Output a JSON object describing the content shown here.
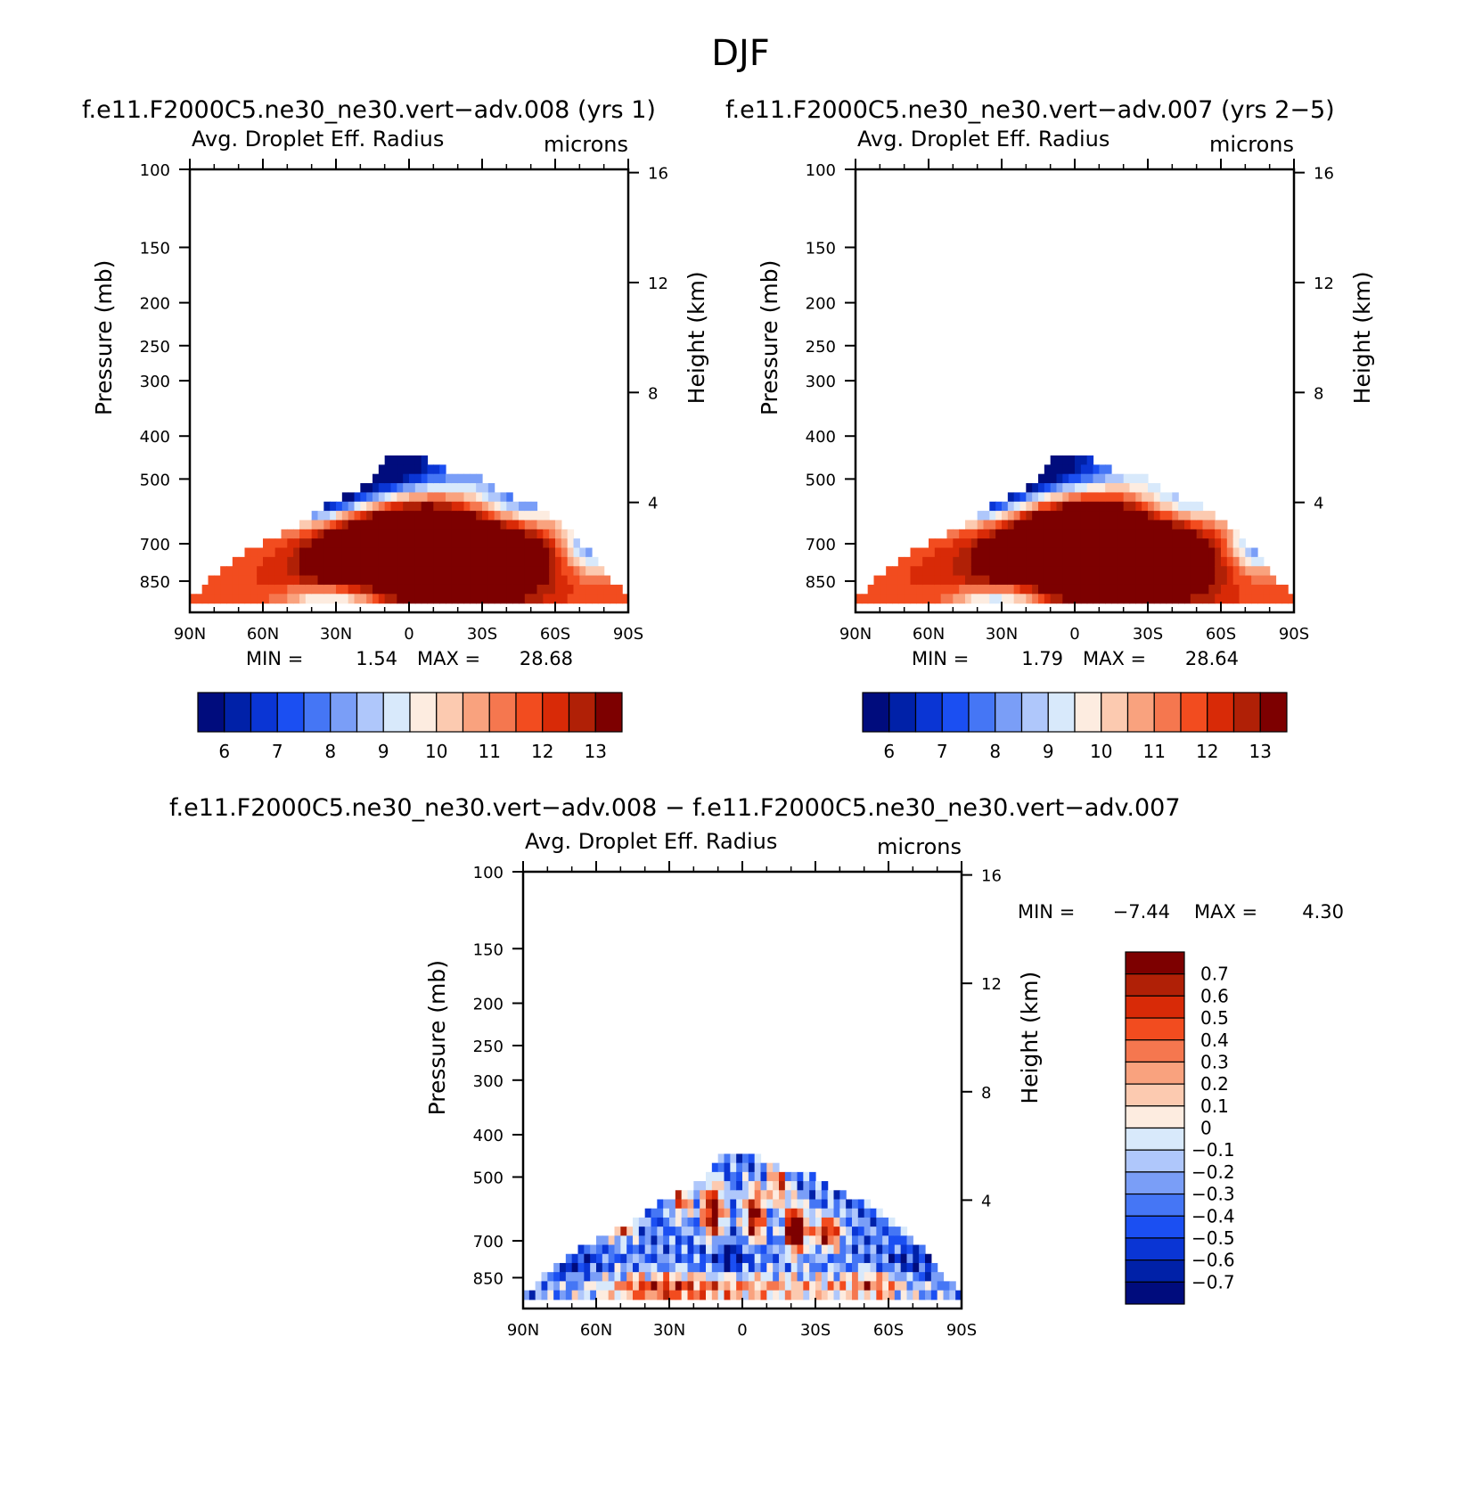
{
  "figure": {
    "title": "DJF",
    "panel_left_title": "f.e11.F2000C5.ne30_ne30.vert−adv.008 (yrs 1)",
    "panel_right_title": "f.e11.F2000C5.ne30_ne30.vert−adv.007 (yrs 2−5)",
    "panel_diff_title": "f.e11.F2000C5.ne30_ne30.vert−adv.008 − f.e11.F2000C5.ne30_ne30.vert−adv.007"
  },
  "chart_data": [
    {
      "type": "heatmap",
      "variable": "Avg. Droplet Eff. Radius",
      "units": "microns",
      "xlabel": "",
      "ylabel": "Pressure (mb)",
      "ylabel_right": "Height (km)",
      "x_ticks": [
        "90N",
        "60N",
        "30N",
        "0",
        "30S",
        "60S",
        "90S"
      ],
      "x_tick_values": [
        90,
        60,
        30,
        0,
        -30,
        -60,
        -90
      ],
      "xlim": [
        90,
        -90
      ],
      "y_ticks": [
        "100",
        "150",
        "200",
        "250",
        "300",
        "400",
        "500",
        "700",
        "850"
      ],
      "y_tick_values": [
        100,
        150,
        200,
        250,
        300,
        400,
        500,
        700,
        850
      ],
      "ylim": [
        1000,
        100
      ],
      "y_scale": "log",
      "y_right_ticks": [
        "16",
        "12",
        "8",
        "4"
      ],
      "y_right_tick_values": [
        16,
        12,
        8,
        4
      ],
      "min_label": "MIN =",
      "min_value": "1.54",
      "max_label": "MAX =",
      "max_value": "28.68",
      "colorbar_orientation": "horizontal",
      "colorbar_levels": [
        "6",
        "7",
        "8",
        "9",
        "10",
        "11",
        "12",
        "13"
      ],
      "colorbar_colors": [
        "#000c7d",
        "#0021a8",
        "#0a35d4",
        "#1b4ff2",
        "#4576f5",
        "#7a9ef7",
        "#afc7fb",
        "#d8e9fb",
        "#fdece0",
        "#fccab0",
        "#f9a27e",
        "#f5774f",
        "#f24c1f",
        "#d82a07",
        "#b02006",
        "#7d0000"
      ],
      "base_value": 11.5,
      "field": [
        {
          "lat": 12,
          "p": 690,
          "sx": 22,
          "sy": 0.2,
          "amp": 3.6
        },
        {
          "lat": -18,
          "p": 680,
          "sx": 24,
          "sy": 0.2,
          "amp": 3.6
        },
        {
          "lat": -40,
          "p": 720,
          "sx": 14,
          "sy": 0.18,
          "amp": 2.0
        },
        {
          "lat": 30,
          "p": 730,
          "sx": 8,
          "sy": 0.12,
          "amp": 1.2
        },
        {
          "lat": 5,
          "p": 870,
          "sx": 60,
          "sy": 0.12,
          "amp": 0.6
        },
        {
          "lat": 30,
          "p": 930,
          "sx": 14,
          "sy": 0.05,
          "amp": -3.5
        },
        {
          "lat": 15,
          "p": 470,
          "sx": 30,
          "sy": 0.14,
          "amp": -8.0
        },
        {
          "lat": 40,
          "p": 540,
          "sx": 16,
          "sy": 0.12,
          "amp": -6.0
        },
        {
          "lat": -45,
          "p": 560,
          "sx": 16,
          "sy": 0.12,
          "amp": -5.0
        },
        {
          "lat": -75,
          "p": 700,
          "sx": 8,
          "sy": 0.1,
          "amp": -4.0
        }
      ]
    },
    {
      "type": "heatmap",
      "variable": "Avg. Droplet Eff. Radius",
      "units": "microns",
      "xlabel": "",
      "ylabel": "Pressure (mb)",
      "ylabel_right": "Height (km)",
      "x_ticks": [
        "90N",
        "60N",
        "30N",
        "0",
        "30S",
        "60S",
        "90S"
      ],
      "x_tick_values": [
        90,
        60,
        30,
        0,
        -30,
        -60,
        -90
      ],
      "xlim": [
        90,
        -90
      ],
      "y_ticks": [
        "100",
        "150",
        "200",
        "250",
        "300",
        "400",
        "500",
        "700",
        "850"
      ],
      "y_tick_values": [
        100,
        150,
        200,
        250,
        300,
        400,
        500,
        700,
        850
      ],
      "ylim": [
        1000,
        100
      ],
      "y_scale": "log",
      "y_right_ticks": [
        "16",
        "12",
        "8",
        "4"
      ],
      "y_right_tick_values": [
        16,
        12,
        8,
        4
      ],
      "min_label": "MIN =",
      "min_value": "1.79",
      "max_label": "MAX =",
      "max_value": "28.64",
      "colorbar_orientation": "horizontal",
      "colorbar_levels": [
        "6",
        "7",
        "8",
        "9",
        "10",
        "11",
        "12",
        "13"
      ],
      "colorbar_colors": [
        "#000c7d",
        "#0021a8",
        "#0a35d4",
        "#1b4ff2",
        "#4576f5",
        "#7a9ef7",
        "#afc7fb",
        "#d8e9fb",
        "#fdece0",
        "#fccab0",
        "#f9a27e",
        "#f5774f",
        "#f24c1f",
        "#d82a07",
        "#b02006",
        "#7d0000"
      ],
      "base_value": 11.6,
      "field": [
        {
          "lat": 12,
          "p": 680,
          "sx": 22,
          "sy": 0.2,
          "amp": 3.7
        },
        {
          "lat": -18,
          "p": 670,
          "sx": 24,
          "sy": 0.2,
          "amp": 3.7
        },
        {
          "lat": -40,
          "p": 720,
          "sx": 14,
          "sy": 0.18,
          "amp": 2.0
        },
        {
          "lat": 5,
          "p": 870,
          "sx": 60,
          "sy": 0.12,
          "amp": 0.6
        },
        {
          "lat": 30,
          "p": 930,
          "sx": 14,
          "sy": 0.05,
          "amp": -3.5
        },
        {
          "lat": 15,
          "p": 470,
          "sx": 30,
          "sy": 0.14,
          "amp": -7.5
        },
        {
          "lat": 40,
          "p": 540,
          "sx": 16,
          "sy": 0.12,
          "amp": -5.5
        },
        {
          "lat": -45,
          "p": 560,
          "sx": 16,
          "sy": 0.12,
          "amp": -4.5
        },
        {
          "lat": -75,
          "p": 700,
          "sx": 8,
          "sy": 0.1,
          "amp": -4.0
        }
      ]
    },
    {
      "type": "heatmap",
      "variable": "Avg. Droplet Eff. Radius",
      "units": "microns",
      "xlabel": "",
      "ylabel": "Pressure (mb)",
      "ylabel_right": "Height (km)",
      "x_ticks": [
        "90N",
        "60N",
        "30N",
        "0",
        "30S",
        "60S",
        "90S"
      ],
      "x_tick_values": [
        90,
        60,
        30,
        0,
        -30,
        -60,
        -90
      ],
      "xlim": [
        90,
        -90
      ],
      "y_ticks": [
        "100",
        "150",
        "200",
        "250",
        "300",
        "400",
        "500",
        "700",
        "850"
      ],
      "y_tick_values": [
        100,
        150,
        200,
        250,
        300,
        400,
        500,
        700,
        850
      ],
      "ylim": [
        1000,
        100
      ],
      "y_scale": "log",
      "y_right_ticks": [
        "16",
        "12",
        "8",
        "4"
      ],
      "y_right_tick_values": [
        16,
        12,
        8,
        4
      ],
      "min_label": "MIN =",
      "min_value": "−7.44",
      "max_label": "MAX =",
      "max_value": "4.30",
      "colorbar_orientation": "vertical",
      "colorbar_levels": [
        "0.7",
        "0.6",
        "0.5",
        "0.4",
        "0.3",
        "0.2",
        "0.1",
        "0",
        "−0.1",
        "−0.2",
        "−0.3",
        "−0.4",
        "−0.5",
        "−0.6",
        "−0.7"
      ],
      "colorbar_colors": [
        "#7d0000",
        "#b02006",
        "#d82a07",
        "#f24c1f",
        "#f5774f",
        "#f9a27e",
        "#fccab0",
        "#fdece0",
        "#d8e9fb",
        "#afc7fb",
        "#7a9ef7",
        "#4576f5",
        "#1b4ff2",
        "#0a35d4",
        "#0021a8",
        "#000c7d"
      ],
      "base_value": -0.35,
      "field": [
        {
          "lat": -22,
          "p": 660,
          "sx": 3,
          "sy": 0.08,
          "amp": 1.8
        },
        {
          "lat": 12,
          "p": 600,
          "sx": 3,
          "sy": 0.1,
          "amp": 1.4
        },
        {
          "lat": -5,
          "p": 610,
          "sx": 3,
          "sy": 0.1,
          "amp": 1.2
        },
        {
          "lat": -35,
          "p": 670,
          "sx": 4,
          "sy": 0.06,
          "amp": 1.1
        },
        {
          "lat": 50,
          "p": 640,
          "sx": 4,
          "sy": 0.06,
          "amp": 0.9
        },
        {
          "lat": -15,
          "p": 520,
          "sx": 3,
          "sy": 0.08,
          "amp": 0.8
        },
        {
          "lat": 25,
          "p": 560,
          "sx": 3,
          "sy": 0.08,
          "amp": 0.8
        },
        {
          "lat": 0,
          "p": 900,
          "sx": 45,
          "sy": 0.06,
          "amp": 0.6
        },
        {
          "lat": 35,
          "p": 900,
          "sx": 14,
          "sy": 0.05,
          "amp": 0.5
        },
        {
          "lat": -55,
          "p": 880,
          "sx": 10,
          "sy": 0.05,
          "amp": 0.5
        },
        {
          "lat": 5,
          "p": 770,
          "sx": 6,
          "sy": 0.06,
          "amp": -0.4
        },
        {
          "lat": 70,
          "p": 790,
          "sx": 8,
          "sy": 0.06,
          "amp": -0.3
        },
        {
          "lat": -70,
          "p": 800,
          "sx": 8,
          "sy": 0.06,
          "amp": -0.3
        }
      ]
    }
  ]
}
